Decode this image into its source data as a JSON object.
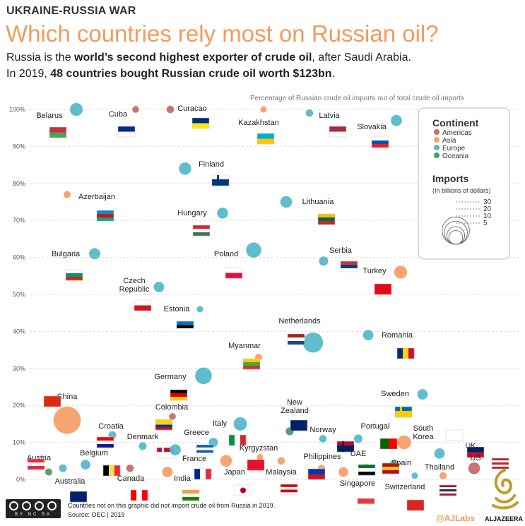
{
  "header": {
    "kicker": "UKRAINE-RUSSIA WAR",
    "title": "Which countries rely most on Russian oil?",
    "line1_pre": "Russia is the ",
    "line1_bold": "world’s second highest exporter of crude oil",
    "line1_post": ", after Saudi Arabia.",
    "line2_pre": "In 2019, ",
    "line2_bold": "48 countries bought Russian crude oil worth $123bn",
    "line2_post": ".",
    "axis_note": "Percentage of Russian crude oil imports out of total crude oil imports"
  },
  "legend": {
    "continent_title": "Continent",
    "continents": [
      {
        "name": "Americas",
        "color": "#c96b6b"
      },
      {
        "name": "Asia",
        "color": "#f5a068"
      },
      {
        "name": "Europe",
        "color": "#56b9c9"
      },
      {
        "name": "Oceania",
        "color": "#4f9a6e"
      }
    ],
    "imports_title": "Imports",
    "imports_sub": "(In billions of dollars)",
    "sizes": [
      "30",
      "20",
      "10",
      "5"
    ]
  },
  "footer": {
    "line1": "Countries not on this graphic did not import crude oil from Russia in 2019.",
    "line2": "Source: OEC | 2019",
    "cc_text": "BY NC SA",
    "handle": "@AJLabs",
    "brand": "ALJAZEERA"
  },
  "chart_data": {
    "type": "scatter",
    "title": "Which countries rely most on Russian oil?",
    "ylabel": "Percentage of Russian crude oil imports out of total crude oil imports",
    "ylim": [
      0,
      100
    ],
    "yticks": [
      "0%",
      "10%",
      "20%",
      "30%",
      "40%",
      "50%",
      "60%",
      "70%",
      "80%",
      "90%",
      "100%"
    ],
    "grid": true,
    "legend_position": "top-right",
    "size_unit": "Imports (billions of dollars)",
    "points": [
      {
        "country": "Belarus",
        "continent": "Europe",
        "pct": 100,
        "imports": 4
      },
      {
        "country": "Cuba",
        "continent": "Americas",
        "pct": 100,
        "imports": 0.3
      },
      {
        "country": "Curacao",
        "continent": "Americas",
        "pct": 100,
        "imports": 0.5
      },
      {
        "country": "Kazakhstan",
        "continent": "Asia",
        "pct": 100,
        "imports": 0.2
      },
      {
        "country": "Latvia",
        "continent": "Europe",
        "pct": 99,
        "imports": 0.5
      },
      {
        "country": "Slovakia",
        "continent": "Europe",
        "pct": 97,
        "imports": 2.5
      },
      {
        "country": "Finland",
        "continent": "Europe",
        "pct": 84,
        "imports": 3.5
      },
      {
        "country": "Azerbaijan",
        "continent": "Asia",
        "pct": 77,
        "imports": 0.4
      },
      {
        "country": "Hungary",
        "continent": "Europe",
        "pct": 72,
        "imports": 2.4
      },
      {
        "country": "Lithuania",
        "continent": "Europe",
        "pct": 75,
        "imports": 3
      },
      {
        "country": "Bulgaria",
        "continent": "Europe",
        "pct": 61,
        "imports": 2.5
      },
      {
        "country": "Poland",
        "continent": "Europe",
        "pct": 62,
        "imports": 6.5
      },
      {
        "country": "Serbia",
        "continent": "Europe",
        "pct": 59,
        "imports": 1.3
      },
      {
        "country": "Turkey",
        "continent": "Asia",
        "pct": 56,
        "imports": 4
      },
      {
        "country": "Czech Republic",
        "continent": "Europe",
        "pct": 52,
        "imports": 2
      },
      {
        "country": "Estonia",
        "continent": "Europe",
        "pct": 46,
        "imports": 0.2
      },
      {
        "country": "Netherlands",
        "continent": "Europe",
        "pct": 37,
        "imports": 14
      },
      {
        "country": "Romania",
        "continent": "Europe",
        "pct": 39,
        "imports": 2
      },
      {
        "country": "Myanmar",
        "continent": "Asia",
        "pct": 33,
        "imports": 0.4
      },
      {
        "country": "Germany",
        "continent": "Europe",
        "pct": 28,
        "imports": 8.5
      },
      {
        "country": "Sweden",
        "continent": "Europe",
        "pct": 23,
        "imports": 2
      },
      {
        "country": "China",
        "continent": "Asia",
        "pct": 16,
        "imports": 30
      },
      {
        "country": "Colombia",
        "continent": "Americas",
        "pct": 17,
        "imports": 0.3
      },
      {
        "country": "Italy",
        "continent": "Europe",
        "pct": 15,
        "imports": 4.5
      },
      {
        "country": "New Zealand",
        "continent": "Oceania",
        "pct": 13,
        "imports": 0.7
      },
      {
        "country": "Croatia",
        "continent": "Europe",
        "pct": 12,
        "imports": 0.6
      },
      {
        "country": "Norway",
        "continent": "Europe",
        "pct": 11,
        "imports": 0.5
      },
      {
        "country": "Portugal",
        "continent": "Europe",
        "pct": 11,
        "imports": 0.9
      },
      {
        "country": "Denmark",
        "continent": "Europe",
        "pct": 9,
        "imports": 0.6
      },
      {
        "country": "Greece",
        "continent": "Europe",
        "pct": 10,
        "imports": 1.2
      },
      {
        "country": "South Korea",
        "continent": "Asia",
        "pct": 10,
        "imports": 5
      },
      {
        "country": "UK",
        "continent": "Europe",
        "pct": 7,
        "imports": 2
      },
      {
        "country": "Austria",
        "continent": "Europe",
        "pct": 3,
        "imports": 0.6
      },
      {
        "country": "Belgium",
        "continent": "Europe",
        "pct": 4,
        "imports": 1.5
      },
      {
        "country": "France",
        "continent": "Europe",
        "pct": 8,
        "imports": 2.5
      },
      {
        "country": "Kyrgyzstan",
        "continent": "Asia",
        "pct": 6,
        "imports": 0.2
      },
      {
        "country": "Philippines",
        "continent": "Asia",
        "pct": 3,
        "imports": 0.4
      },
      {
        "country": "UAE",
        "continent": "Asia",
        "pct": 3,
        "imports": 1
      },
      {
        "country": "Spain",
        "continent": "Europe",
        "pct": 4,
        "imports": 1.5
      },
      {
        "country": "Thailand",
        "continent": "Asia",
        "pct": 1,
        "imports": 0.4
      },
      {
        "country": "US",
        "continent": "Americas",
        "pct": 3,
        "imports": 3
      },
      {
        "country": "Australia",
        "continent": "Oceania",
        "pct": 2,
        "imports": 0.4
      },
      {
        "country": "Canada",
        "continent": "Americas",
        "pct": 3,
        "imports": 0.5
      },
      {
        "country": "India",
        "continent": "Asia",
        "pct": 2,
        "imports": 2
      },
      {
        "country": "Japan",
        "continent": "Asia",
        "pct": 5,
        "imports": 3
      },
      {
        "country": "Malaysia",
        "continent": "Asia",
        "pct": 5,
        "imports": 0.5
      },
      {
        "country": "Singapore",
        "continent": "Asia",
        "pct": 2,
        "imports": 1.5
      },
      {
        "country": "Switzerland",
        "continent": "Europe",
        "pct": 1,
        "imports": 0.2
      }
    ]
  }
}
